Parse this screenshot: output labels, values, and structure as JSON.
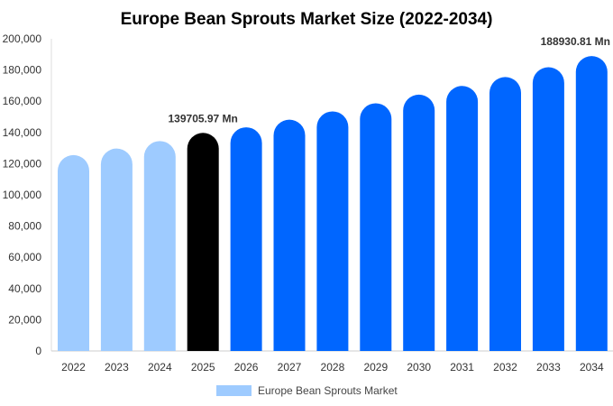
{
  "chart_data": {
    "type": "bar",
    "title": "Europe Bean Sprouts Market Size (2022-2034)",
    "categories": [
      "2022",
      "2023",
      "2024",
      "2025",
      "2026",
      "2027",
      "2028",
      "2029",
      "2030",
      "2031",
      "2032",
      "2033",
      "2034"
    ],
    "series": [
      {
        "name": "Europe Bean Sprouts Market",
        "values": [
          125500,
          129700,
          134500,
          139705.97,
          143300,
          148200,
          153500,
          158700,
          164200,
          169800,
          175500,
          181800,
          188930.81
        ]
      }
    ],
    "bar_colors": [
      "#9ecbff",
      "#9ecbff",
      "#9ecbff",
      "#000000",
      "#0066ff",
      "#0066ff",
      "#0066ff",
      "#0066ff",
      "#0066ff",
      "#0066ff",
      "#0066ff",
      "#0066ff",
      "#0066ff"
    ],
    "legend_color": "#9ecbff",
    "data_labels": [
      {
        "index": 3,
        "text": "139705.97 Mn"
      },
      {
        "index": 12,
        "text": "188930.81 Mn"
      }
    ],
    "y_ticks": [
      "0",
      "20,000",
      "40,000",
      "60,000",
      "80,000",
      "100,000",
      "120,000",
      "140,000",
      "160,000",
      "180,000",
      "200,000"
    ],
    "ylim": [
      0,
      200000
    ],
    "xlabel": "",
    "ylabel": "",
    "grid": false,
    "legend_position": "bottom"
  }
}
